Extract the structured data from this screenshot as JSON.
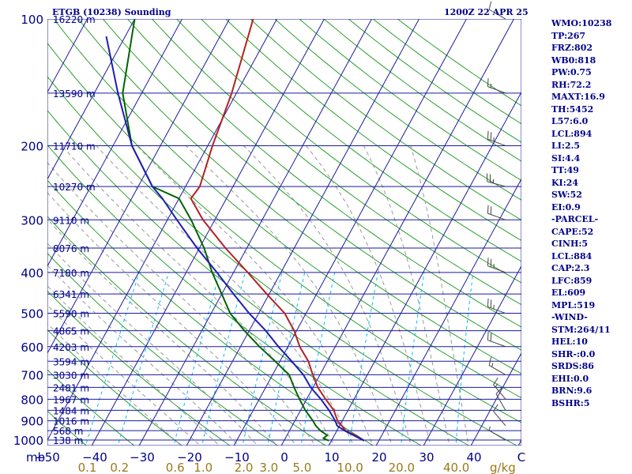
{
  "header": {
    "station_title": "ETGB (10238) Sounding",
    "time_title": "1200Z 22 APR 25"
  },
  "stats": [
    "WMO:10238",
    "TP:267",
    "FRZ:802",
    "WB0:818",
    "PW:0.75",
    "RH:72.2",
    "MAXT:16.9",
    "TH:5452",
    "L57:6.0",
    "LCL:894",
    "LI:2.5",
    "SI:4.4",
    "TT:49",
    "KI:24",
    "SW:52",
    "EI:0.9",
    "-PARCEL-",
    "CAPE:52",
    "CINH:5",
    "LCL:884",
    "CAP:2.3",
    "LFC:859",
    "EL:609",
    "MPL:519",
    "-WIND-",
    "STM:264/11",
    "HEL:10",
    "SHR-:0.0",
    "SRDS:86",
    "EHI:0.0",
    "BRN:9.6",
    "BSHR:5"
  ],
  "colors": {
    "isobar": "#1a1aa0",
    "isotherm": "#1a1aa0",
    "dry_adiabat": "#2ca02c",
    "mixing_ratio": "#00bfff",
    "moist_adiabat": "#999999",
    "temperature": "#b22222",
    "dewpoint": "#006400",
    "parcel": "#1e1eb4",
    "axis_labels": "#00008b",
    "mixing_labels": "#9a7a18",
    "wind": "#444444"
  },
  "chart_data": {
    "type": "line",
    "diagram": "skew-T log-p",
    "y_unit": "hPa",
    "x_unit": "°C",
    "ylim": [
      1000,
      100
    ],
    "xlim": [
      -50,
      50
    ],
    "y_scale": "log",
    "pressure_ticks": [
      100,
      200,
      300,
      400,
      500,
      600,
      700,
      800,
      900,
      1000
    ],
    "temperature_ticks": [
      -50,
      -40,
      -30,
      -20,
      -10,
      0,
      10,
      20,
      30,
      40,
      50
    ],
    "temperature_tick_labels": [
      "−50",
      "−40",
      "−30",
      "−20",
      "−10",
      "0",
      "10",
      "20",
      "30",
      "40",
      "C"
    ],
    "corner_label": "mb",
    "height_levels": [
      {
        "p": 100,
        "label": "16220 m"
      },
      {
        "p": 150,
        "label": "13590 m"
      },
      {
        "p": 200,
        "label": "11710 m"
      },
      {
        "p": 250,
        "label": "10270 m"
      },
      {
        "p": 300,
        "label": "9110 m"
      },
      {
        "p": 350,
        "label": "8076 m"
      },
      {
        "p": 400,
        "label": "7180 m"
      },
      {
        "p": 450,
        "label": "6341 m"
      },
      {
        "p": 500,
        "label": "5590 m"
      },
      {
        "p": 550,
        "label": "4865 m"
      },
      {
        "p": 600,
        "label": "4203 m"
      },
      {
        "p": 650,
        "label": "3594 m"
      },
      {
        "p": 700,
        "label": "3030 m"
      },
      {
        "p": 750,
        "label": "2481 m"
      },
      {
        "p": 800,
        "label": "1967 m"
      },
      {
        "p": 850,
        "label": "1484 m"
      },
      {
        "p": 900,
        "label": "1016 m"
      },
      {
        "p": 950,
        "label": "568 m"
      },
      {
        "p": 1000,
        "label": "138 m"
      }
    ],
    "mixing_ratio_labels": [
      "0.1",
      "0.2",
      "0.6",
      "1.0",
      "2.0",
      "3.0",
      "5.0",
      "10.0",
      "20.0",
      "40.0"
    ],
    "mixing_ratio_values": [
      0.1,
      0.2,
      0.6,
      1.0,
      2.0,
      3.0,
      5.0,
      10.0,
      20.0,
      40.0
    ],
    "mixing_ratio_unit": "g/kg",
    "series": [
      {
        "key": "temperature",
        "points": [
          {
            "p": 1004,
            "t": 16.9
          },
          {
            "p": 975,
            "t": 14.5
          },
          {
            "p": 950,
            "t": 11.8
          },
          {
            "p": 925,
            "t": 10.5
          },
          {
            "p": 900,
            "t": 9.0
          },
          {
            "p": 850,
            "t": 7.0
          },
          {
            "p": 800,
            "t": 4.0
          },
          {
            "p": 750,
            "t": 1.0
          },
          {
            "p": 700,
            "t": -1.5
          },
          {
            "p": 650,
            "t": -4.0
          },
          {
            "p": 600,
            "t": -7.5
          },
          {
            "p": 550,
            "t": -10.5
          },
          {
            "p": 500,
            "t": -14.5
          },
          {
            "p": 450,
            "t": -20.5
          },
          {
            "p": 400,
            "t": -27.0
          },
          {
            "p": 350,
            "t": -34.5
          },
          {
            "p": 300,
            "t": -42.5
          },
          {
            "p": 267,
            "t": -47.5
          },
          {
            "p": 250,
            "t": -47.0
          },
          {
            "p": 200,
            "t": -49.0
          },
          {
            "p": 150,
            "t": -51.0
          },
          {
            "p": 100,
            "t": -55.0
          }
        ]
      },
      {
        "key": "dewpoint",
        "points": [
          {
            "p": 1004,
            "t": 9.5
          },
          {
            "p": 990,
            "t": 8.0
          },
          {
            "p": 975,
            "t": 8.5
          },
          {
            "p": 950,
            "t": 6.5
          },
          {
            "p": 925,
            "t": 5.0
          },
          {
            "p": 900,
            "t": 3.8
          },
          {
            "p": 850,
            "t": 1.0
          },
          {
            "p": 800,
            "t": -1.5
          },
          {
            "p": 750,
            "t": -4.0
          },
          {
            "p": 700,
            "t": -6.5
          },
          {
            "p": 650,
            "t": -11.0
          },
          {
            "p": 600,
            "t": -16.0
          },
          {
            "p": 550,
            "t": -21.0
          },
          {
            "p": 500,
            "t": -26.0
          },
          {
            "p": 450,
            "t": -30.0
          },
          {
            "p": 400,
            "t": -34.5
          },
          {
            "p": 350,
            "t": -39.0
          },
          {
            "p": 300,
            "t": -45.0
          },
          {
            "p": 267,
            "t": -50.0
          },
          {
            "p": 250,
            "t": -57.0
          },
          {
            "p": 200,
            "t": -66.0
          },
          {
            "p": 150,
            "t": -74.0
          },
          {
            "p": 100,
            "t": -80.0
          }
        ]
      },
      {
        "key": "parcel",
        "points": [
          {
            "p": 1004,
            "t": 16.9
          },
          {
            "p": 950,
            "t": 11.6
          },
          {
            "p": 925,
            "t": 9.5
          },
          {
            "p": 900,
            "t": 8.5
          },
          {
            "p": 850,
            "t": 6.0
          },
          {
            "p": 800,
            "t": 3.0
          },
          {
            "p": 750,
            "t": -0.5
          },
          {
            "p": 700,
            "t": -3.5
          },
          {
            "p": 650,
            "t": -7.5
          },
          {
            "p": 600,
            "t": -12.0
          },
          {
            "p": 550,
            "t": -16.5
          },
          {
            "p": 500,
            "t": -22.0
          },
          {
            "p": 450,
            "t": -27.5
          },
          {
            "p": 400,
            "t": -33.5
          },
          {
            "p": 350,
            "t": -40.5
          },
          {
            "p": 300,
            "t": -48.0
          },
          {
            "p": 267,
            "t": -53.5
          },
          {
            "p": 250,
            "t": -57.0
          },
          {
            "p": 200,
            "t": -66.0
          },
          {
            "p": 150,
            "t": -75.0
          },
          {
            "p": 110,
            "t": -84.0
          }
        ]
      }
    ],
    "wind_barbs": [
      {
        "p": 1000,
        "dir": 300,
        "kt": 5
      },
      {
        "p": 925,
        "dir": 320,
        "kt": 10
      },
      {
        "p": 850,
        "dir": 330,
        "kt": 10
      },
      {
        "p": 800,
        "dir": 320,
        "kt": 15
      },
      {
        "p": 700,
        "dir": 300,
        "kt": 15
      },
      {
        "p": 600,
        "dir": 290,
        "kt": 20
      },
      {
        "p": 500,
        "dir": 290,
        "kt": 25
      },
      {
        "p": 400,
        "dir": 290,
        "kt": 25
      },
      {
        "p": 300,
        "dir": 290,
        "kt": 20
      },
      {
        "p": 250,
        "dir": 285,
        "kt": 25
      },
      {
        "p": 200,
        "dir": 290,
        "kt": 25
      },
      {
        "p": 150,
        "dir": 290,
        "kt": 15
      },
      {
        "p": 100,
        "dir": 300,
        "kt": 10
      }
    ]
  }
}
